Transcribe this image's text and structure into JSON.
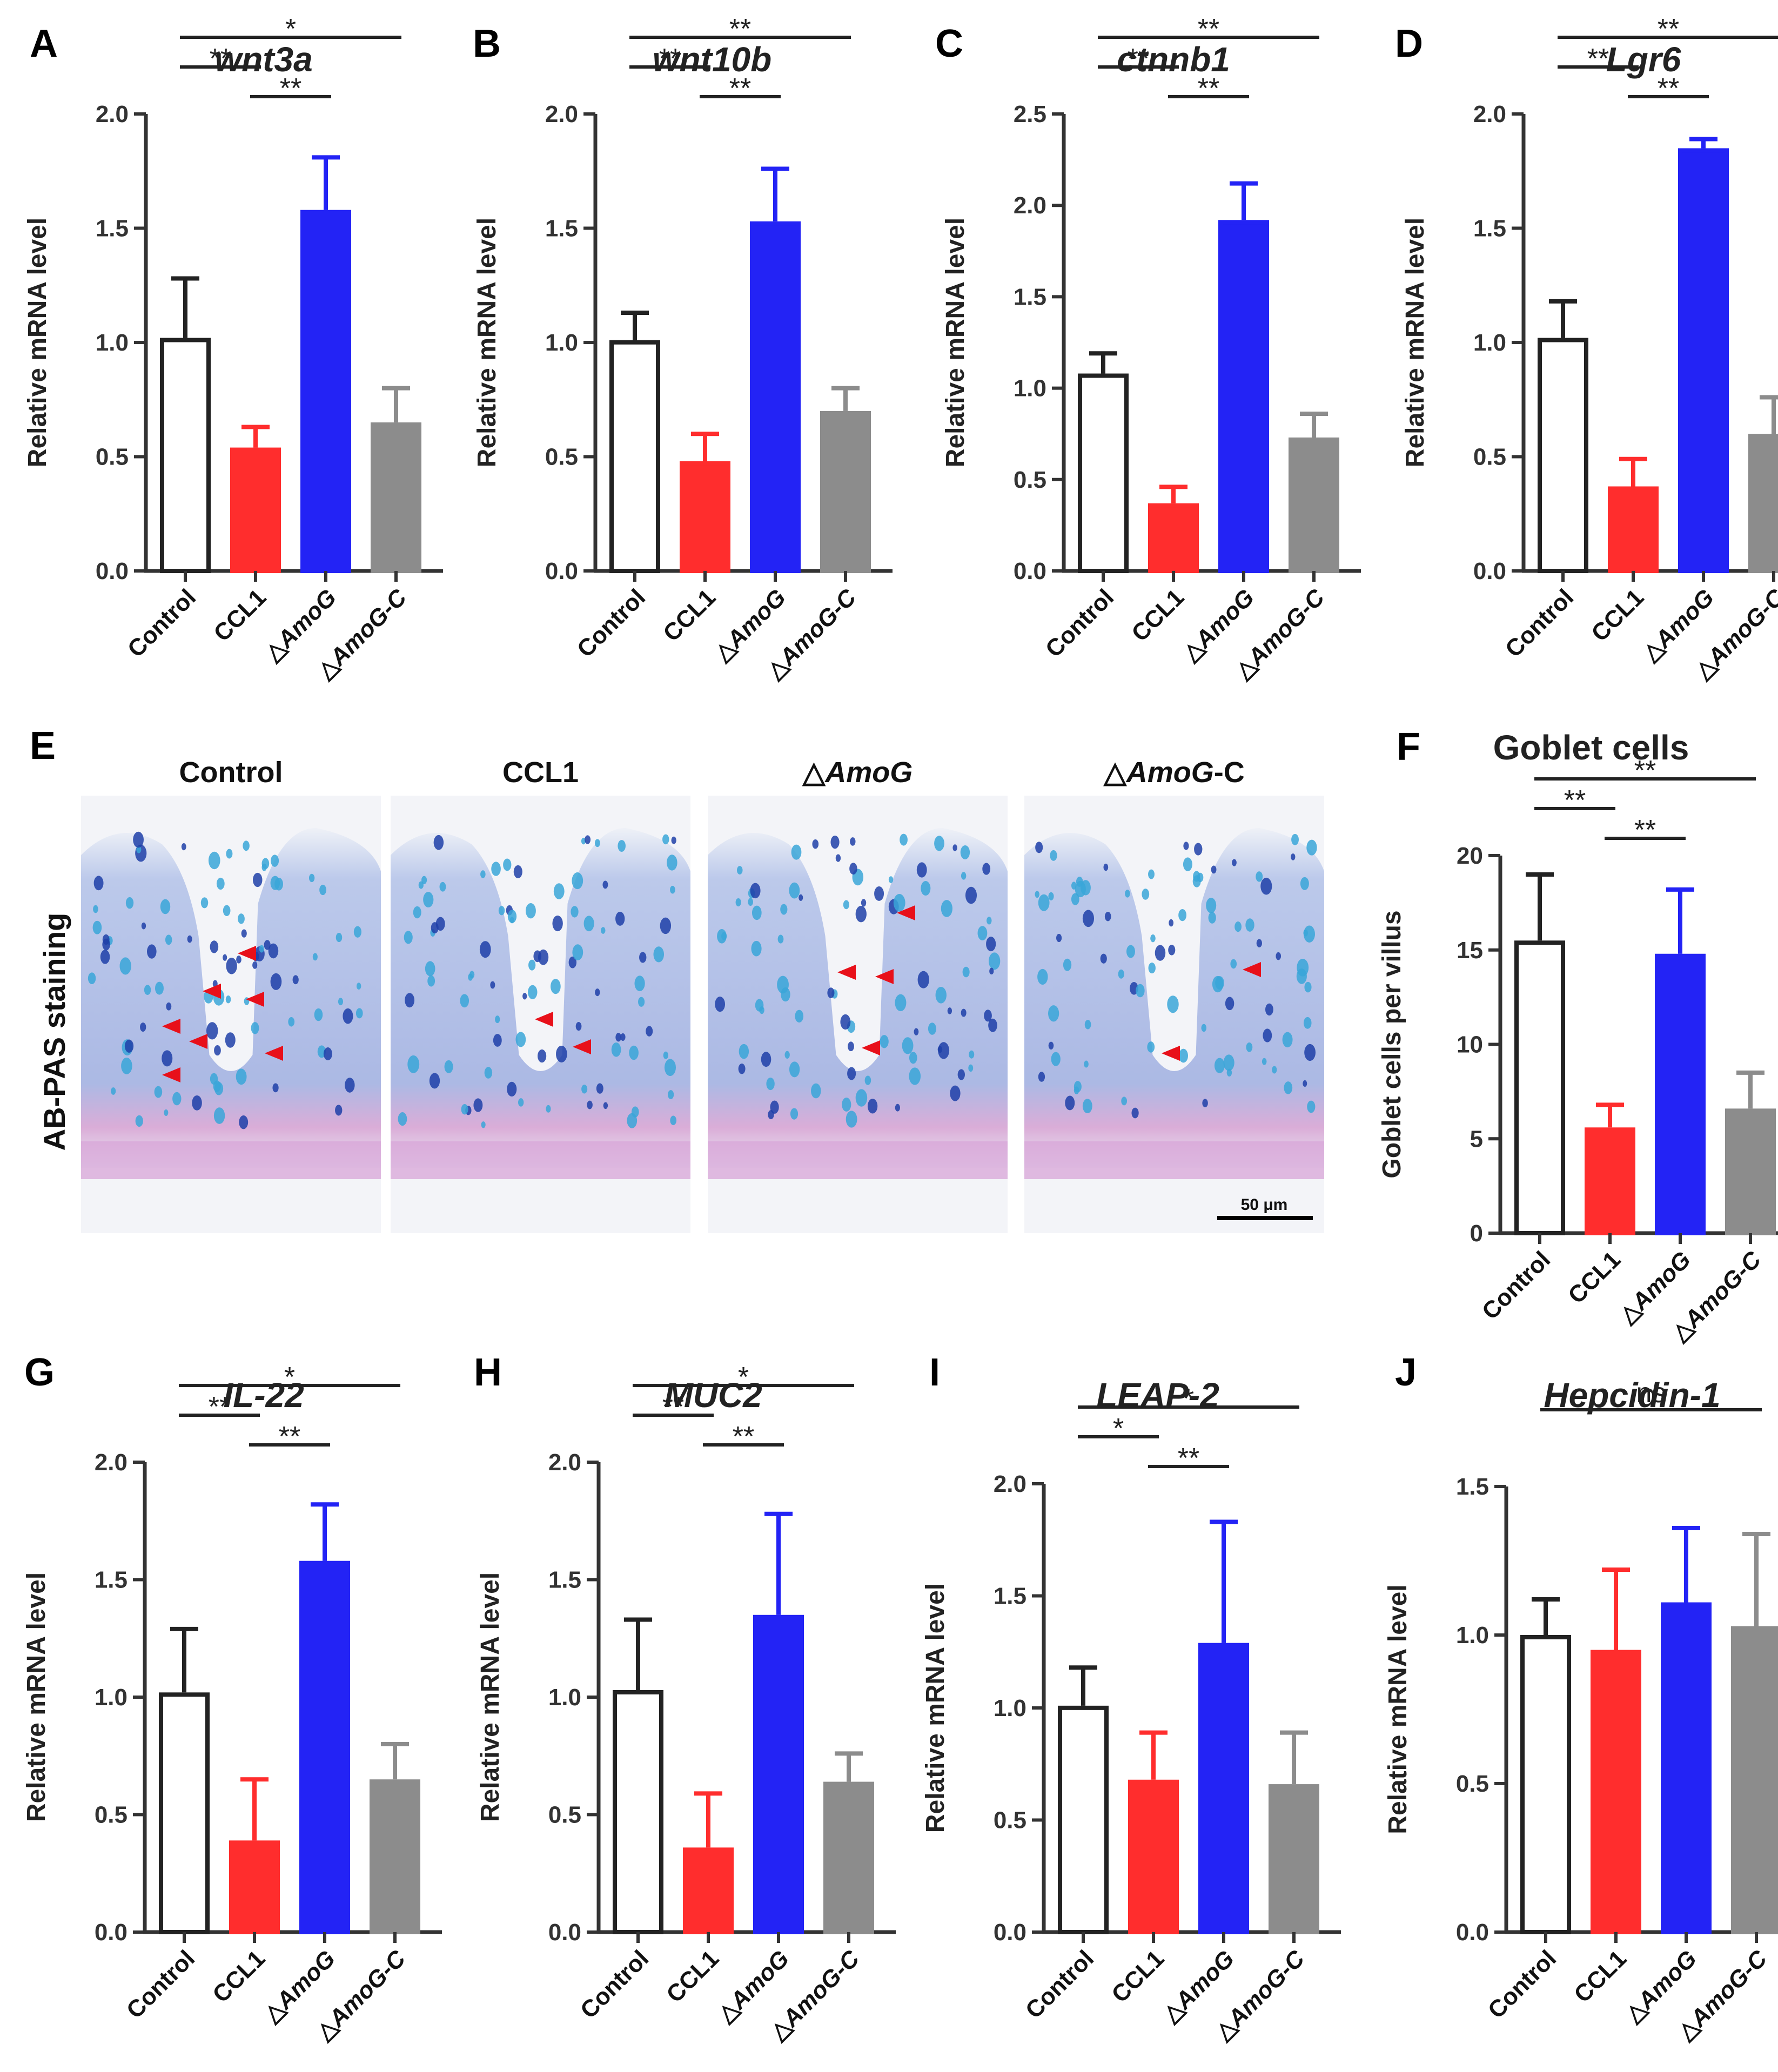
{
  "colors": {
    "Control": "#ffffff",
    "CCL1": "#ff2d2d",
    "AmoG": "#2323f5",
    "AmoG-C": "#8c8c8c",
    "axis": "#333333",
    "arrowhead": "#e8101a"
  },
  "chart_data": [
    {
      "letter": "A",
      "type": "bar",
      "title": "wnt3a",
      "title_italic": true,
      "ylabel": "Relative mRNA level",
      "categories": [
        "Control",
        "CCL1",
        "△AmoG",
        "△AmoG-C"
      ],
      "categories_italic": [
        false,
        false,
        true,
        true
      ],
      "values": [
        1.02,
        0.54,
        1.58,
        0.65
      ],
      "errors": [
        0.26,
        0.09,
        0.23,
        0.15
      ],
      "ylim": [
        0,
        2.0
      ],
      "yticks": [
        "0.0",
        "0.5",
        "1.0",
        "1.5",
        "2.0"
      ],
      "significance": [
        {
          "from": 0,
          "to": 3,
          "label": "*",
          "level": 2
        },
        {
          "from": 0,
          "to": 1,
          "label": "**",
          "level": 1
        },
        {
          "from": 1,
          "to": 2,
          "label": "**",
          "level": 0
        }
      ]
    },
    {
      "letter": "B",
      "type": "bar",
      "title": "wnt10b",
      "title_italic": true,
      "ylabel": "Relative mRNA level",
      "categories": [
        "Control",
        "CCL1",
        "△AmoG",
        "△AmoG-C"
      ],
      "categories_italic": [
        false,
        false,
        true,
        true
      ],
      "values": [
        1.01,
        0.48,
        1.53,
        0.7
      ],
      "errors": [
        0.12,
        0.12,
        0.23,
        0.1
      ],
      "ylim": [
        0,
        2.0
      ],
      "yticks": [
        "0.0",
        "0.5",
        "1.0",
        "1.5",
        "2.0"
      ],
      "significance": [
        {
          "from": 0,
          "to": 3,
          "label": "**",
          "level": 2
        },
        {
          "from": 0,
          "to": 1,
          "label": "**",
          "level": 1
        },
        {
          "from": 1,
          "to": 2,
          "label": "**",
          "level": 0
        }
      ]
    },
    {
      "letter": "C",
      "type": "bar",
      "title": "ctnnb1",
      "title_italic": true,
      "ylabel": "Relative mRNA level",
      "categories": [
        "Control",
        "CCL1",
        "△AmoG",
        "△AmoG-C"
      ],
      "categories_italic": [
        false,
        false,
        true,
        true
      ],
      "values": [
        1.08,
        0.37,
        1.92,
        0.73
      ],
      "errors": [
        0.11,
        0.09,
        0.2,
        0.13
      ],
      "ylim": [
        0,
        2.5
      ],
      "yticks": [
        "0.0",
        "0.5",
        "1.0",
        "1.5",
        "2.0",
        "2.5"
      ],
      "significance": [
        {
          "from": 0,
          "to": 3,
          "label": "**",
          "level": 2
        },
        {
          "from": 0,
          "to": 1,
          "label": "**",
          "level": 1
        },
        {
          "from": 1,
          "to": 2,
          "label": "**",
          "level": 0
        }
      ]
    },
    {
      "letter": "D",
      "type": "bar",
      "title": "Lgr6",
      "title_italic": true,
      "ylabel": "Relative mRNA level",
      "categories": [
        "Control",
        "CCL1",
        "△AmoG",
        "△AmoG-C"
      ],
      "categories_italic": [
        false,
        false,
        true,
        true
      ],
      "values": [
        1.02,
        0.37,
        1.85,
        0.6
      ],
      "errors": [
        0.16,
        0.12,
        0.04,
        0.16
      ],
      "ylim": [
        0,
        2.0
      ],
      "yticks": [
        "0.0",
        "0.5",
        "1.0",
        "1.5",
        "2.0"
      ],
      "significance": [
        {
          "from": 0,
          "to": 3,
          "label": "**",
          "level": 2
        },
        {
          "from": 0,
          "to": 1,
          "label": "**",
          "level": 1
        },
        {
          "from": 1,
          "to": 2,
          "label": "**",
          "level": 0
        }
      ]
    },
    {
      "letter": "F",
      "type": "bar",
      "title": "Goblet cells",
      "title_italic": false,
      "ylabel": "Goblet cells per villus",
      "categories": [
        "Control",
        "CCL1",
        "△AmoG",
        "△AmoG-C"
      ],
      "categories_italic": [
        false,
        false,
        true,
        true
      ],
      "values": [
        15.5,
        5.6,
        14.8,
        6.6
      ],
      "errors": [
        3.5,
        1.2,
        3.4,
        1.9
      ],
      "ylim": [
        0,
        20
      ],
      "yticks": [
        "0",
        "5",
        "10",
        "15",
        "20"
      ],
      "significance": [
        {
          "from": 0,
          "to": 3,
          "label": "**",
          "level": 2
        },
        {
          "from": 0,
          "to": 1,
          "label": "**",
          "level": 1
        },
        {
          "from": 1,
          "to": 2,
          "label": "**",
          "level": 0
        }
      ]
    },
    {
      "letter": "G",
      "type": "bar",
      "title": "IL-22",
      "title_italic": true,
      "ylabel": "Relative mRNA level",
      "categories": [
        "Control",
        "CCL1",
        "△AmoG",
        "△AmoG-C"
      ],
      "categories_italic": [
        false,
        false,
        true,
        true
      ],
      "values": [
        1.02,
        0.39,
        1.58,
        0.65
      ],
      "errors": [
        0.27,
        0.26,
        0.24,
        0.15
      ],
      "ylim": [
        0,
        2.0
      ],
      "yticks": [
        "0.0",
        "0.5",
        "1.0",
        "1.5",
        "2.0"
      ],
      "significance": [
        {
          "from": 0,
          "to": 3,
          "label": "*",
          "level": 2
        },
        {
          "from": 0,
          "to": 1,
          "label": "**",
          "level": 1
        },
        {
          "from": 1,
          "to": 2,
          "label": "**",
          "level": 0
        }
      ]
    },
    {
      "letter": "H",
      "type": "bar",
      "title": "MUC2",
      "title_italic": true,
      "ylabel": "Relative mRNA level",
      "categories": [
        "Control",
        "CCL1",
        "△AmoG",
        "△AmoG-C"
      ],
      "categories_italic": [
        false,
        false,
        true,
        true
      ],
      "values": [
        1.03,
        0.36,
        1.35,
        0.64
      ],
      "errors": [
        0.3,
        0.23,
        0.43,
        0.12
      ],
      "ylim": [
        0,
        2.0
      ],
      "yticks": [
        "0.0",
        "0.5",
        "1.0",
        "1.5",
        "2.0"
      ],
      "significance": [
        {
          "from": 0,
          "to": 3,
          "label": "*",
          "level": 2
        },
        {
          "from": 0,
          "to": 1,
          "label": "**",
          "level": 1
        },
        {
          "from": 1,
          "to": 2,
          "label": "**",
          "level": 0
        }
      ]
    },
    {
      "letter": "I",
      "type": "bar",
      "title": "LEAP-2",
      "title_italic": true,
      "ylabel": "Relative mRNA level",
      "categories": [
        "Control",
        "CCL1",
        "△AmoG",
        "△AmoG-C"
      ],
      "categories_italic": [
        false,
        false,
        true,
        true
      ],
      "values": [
        1.01,
        0.68,
        1.29,
        0.66
      ],
      "errors": [
        0.17,
        0.21,
        0.54,
        0.23
      ],
      "ylim": [
        0,
        2.0
      ],
      "yticks": [
        "0.0",
        "0.5",
        "1.0",
        "1.5",
        "2.0"
      ],
      "significance": [
        {
          "from": 0,
          "to": 3,
          "label": "*",
          "level": 2
        },
        {
          "from": 0,
          "to": 1,
          "label": "*",
          "level": 1
        },
        {
          "from": 1,
          "to": 2,
          "label": "**",
          "level": 0
        }
      ]
    },
    {
      "letter": "J",
      "type": "bar",
      "title": "Hepcidin-1",
      "title_italic": true,
      "ylabel": "Relative mRNA level",
      "categories": [
        "Control",
        "CCL1",
        "△AmoG",
        "△AmoG-C"
      ],
      "categories_italic": [
        false,
        false,
        true,
        true
      ],
      "values": [
        1.0,
        0.95,
        1.11,
        1.03
      ],
      "errors": [
        0.12,
        0.27,
        0.25,
        0.31
      ],
      "ylim": [
        0,
        1.5
      ],
      "yticks": [
        "0.0",
        "0.5",
        "1.0",
        "1.5"
      ],
      "significance": [
        {
          "from": 0,
          "to": 3,
          "label": "ns",
          "level": 2
        }
      ]
    }
  ],
  "histology": {
    "letter": "E",
    "side_label": "AB-PAS staining",
    "images": [
      {
        "label": "Control",
        "italic_part": ""
      },
      {
        "label": "CCL1",
        "italic_part": ""
      },
      {
        "label": "△",
        "italic_part": "AmoG",
        "suffix": ""
      },
      {
        "label": "△",
        "italic_part": "AmoG",
        "suffix": "-C"
      }
    ],
    "scale_bar": "50 μm"
  }
}
